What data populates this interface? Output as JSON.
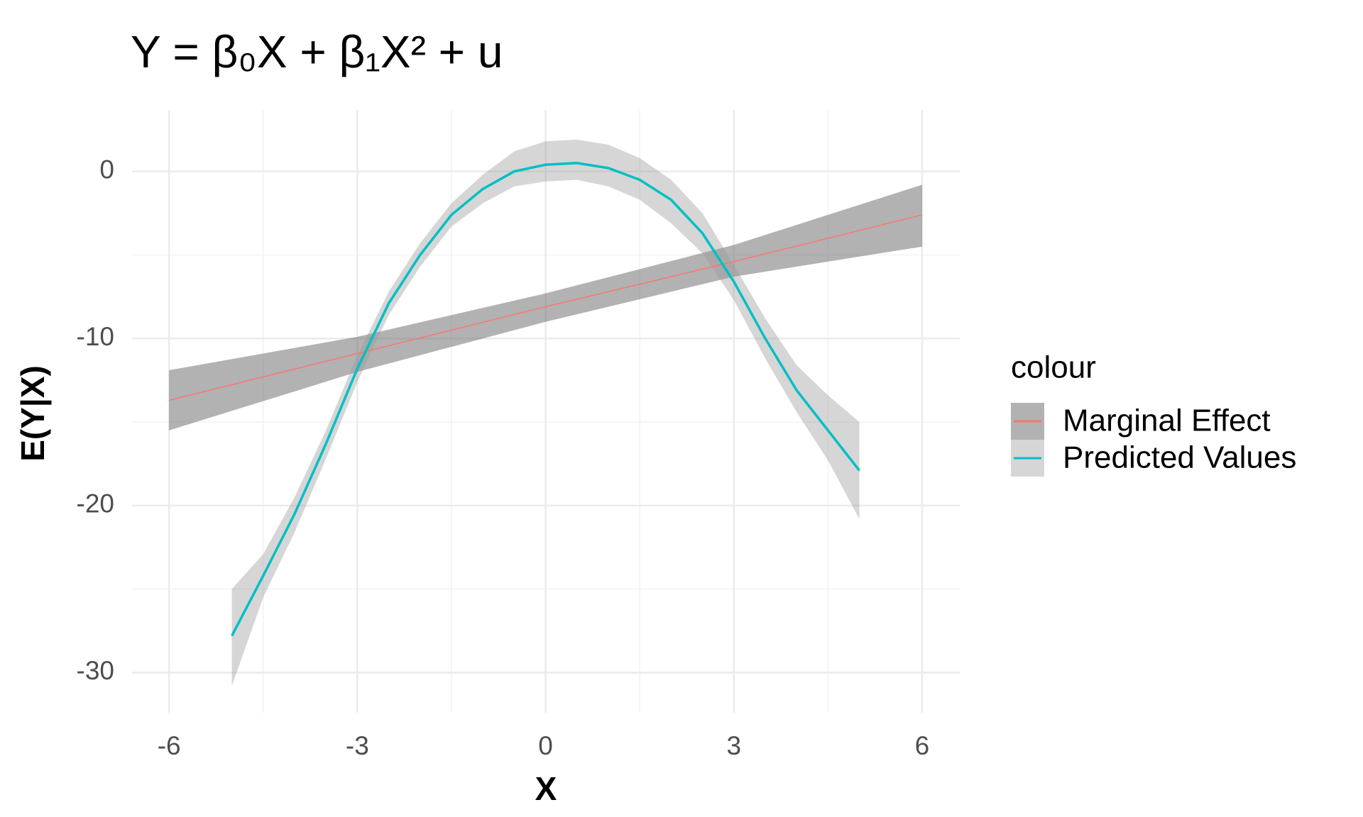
{
  "chart_data": {
    "type": "line",
    "title": "Y = β₀X + β₁X² + u",
    "x_label": "X",
    "y_label": "E(Y|X)",
    "legend_title": "colour",
    "legend_position": "right",
    "grid": true,
    "xlim": [
      -6.59,
      6.6
    ],
    "ylim": [
      -32.4,
      3.68
    ],
    "xticks": [
      -6,
      -3,
      0,
      3,
      6
    ],
    "yticks": [
      -30,
      -20,
      -10,
      0
    ],
    "xminorticks": [
      -4.5,
      -1.5,
      1.5,
      4.5
    ],
    "yminorticks": [
      -25,
      -15,
      -5
    ],
    "series": [
      {
        "name": "Marginal Effect",
        "color": "#F8766D",
        "ribbon_color": "rgba(102,102,102,0.5)",
        "x": [
          -6,
          -3,
          0,
          3,
          6
        ],
        "values": [
          -13.7,
          -10.9,
          -8.1,
          -5.4,
          -2.6
        ],
        "lower": [
          -15.5,
          -12.0,
          -9.0,
          -6.3,
          -4.5
        ],
        "upper": [
          -11.9,
          -9.9,
          -7.3,
          -4.4,
          -0.8
        ]
      },
      {
        "name": "Predicted Values",
        "color": "#00BFC4",
        "ribbon_color": "rgba(153,153,153,0.4)",
        "x": [
          -5,
          -4.5,
          -4,
          -3.5,
          -3,
          -2.5,
          -2,
          -1.5,
          -1,
          -0.5,
          0,
          0.5,
          1,
          1.5,
          2,
          2.5,
          3,
          3.5,
          4,
          4.5,
          5
        ],
        "values": [
          -27.8,
          -24.2,
          -20.5,
          -16.3,
          -11.8,
          -7.9,
          -5.0,
          -2.6,
          -1.05,
          0,
          0.4,
          0.5,
          0.2,
          -0.5,
          -1.7,
          -3.7,
          -6.6,
          -10,
          -13.1,
          -15.5,
          -17.9
        ],
        "lower": [
          -30.8,
          -25.5,
          -21.6,
          -17.2,
          -12.6,
          -8.6,
          -5.7,
          -3.3,
          -1.9,
          -0.9,
          -0.6,
          -0.5,
          -0.9,
          -1.7,
          -3.1,
          -4.9,
          -7.7,
          -11.2,
          -14.4,
          -17.3,
          -20.8
        ],
        "upper": [
          -25,
          -22.9,
          -19.5,
          -15.5,
          -11,
          -7.2,
          -4.3,
          -1.9,
          -0.2,
          1.2,
          1.8,
          1.9,
          1.6,
          0.8,
          -0.5,
          -2.5,
          -5.6,
          -8.8,
          -11.6,
          -13.4,
          -15
        ]
      }
    ]
  }
}
